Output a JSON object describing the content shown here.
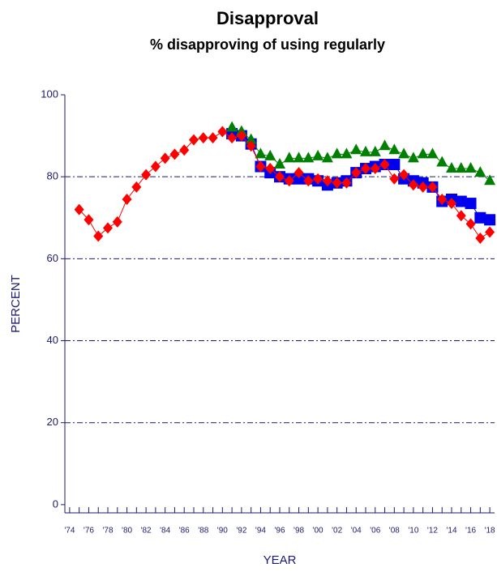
{
  "chart_data": {
    "type": "line",
    "title": "Disapproval",
    "subtitle": "% disapproving of using regularly",
    "xlabel": "YEAR",
    "ylabel": "PERCENT",
    "grid": true,
    "xlim": [
      1973.5,
      2018.5
    ],
    "ylim": [
      -2,
      100
    ],
    "yticks": [
      0,
      20,
      40,
      60,
      80,
      100
    ],
    "xticks": [
      {
        "value": 1974,
        "label": "'74"
      },
      {
        "value": 1976,
        "label": "'76"
      },
      {
        "value": 1978,
        "label": "'78"
      },
      {
        "value": 1980,
        "label": "'80"
      },
      {
        "value": 1982,
        "label": "'82"
      },
      {
        "value": 1984,
        "label": "'84"
      },
      {
        "value": 1986,
        "label": "'86"
      },
      {
        "value": 1988,
        "label": "'88"
      },
      {
        "value": 1990,
        "label": "'90"
      },
      {
        "value": 1992,
        "label": "'92"
      },
      {
        "value": 1994,
        "label": "'94"
      },
      {
        "value": 1996,
        "label": "'96"
      },
      {
        "value": 1998,
        "label": "'98"
      },
      {
        "value": 2000,
        "label": "'00"
      },
      {
        "value": 2002,
        "label": "'02"
      },
      {
        "value": 2004,
        "label": "'04"
      },
      {
        "value": 2006,
        "label": "'06"
      },
      {
        "value": 2008,
        "label": "'08"
      },
      {
        "value": 2010,
        "label": "'10"
      },
      {
        "value": 2012,
        "label": "'12"
      },
      {
        "value": 2014,
        "label": "'14"
      },
      {
        "value": 2016,
        "label": "'16"
      },
      {
        "value": 2018,
        "label": "'18"
      }
    ],
    "xminorticks": [
      1975,
      1977,
      1979,
      1981,
      1983,
      1985,
      1987,
      1989,
      1991,
      1993,
      1995,
      1997,
      1999,
      2001,
      2003,
      2005,
      2007,
      2009,
      2011,
      2013,
      2015,
      2017
    ],
    "series": [
      {
        "color": "#0000ee",
        "marker": "square",
        "x": [
          1991,
          1992,
          1993,
          1994,
          1995,
          1996,
          1997,
          1998,
          1999,
          2000,
          2001,
          2002,
          2003,
          2004,
          2005,
          2006,
          2007,
          2008,
          2009,
          2010,
          2011,
          2012,
          2013,
          2014,
          2015,
          2016,
          2017,
          2018
        ],
        "values": [
          90.5,
          90,
          88,
          82.5,
          81,
          80,
          79.5,
          79.5,
          79.5,
          79,
          78,
          78.5,
          79,
          81,
          82,
          82.5,
          83,
          83,
          79.5,
          79,
          78.5,
          77.5,
          74,
          74.5,
          74,
          73.5,
          70,
          69.5
        ]
      },
      {
        "color": "#008000",
        "marker": "triangle",
        "x": [
          1991,
          1992,
          1993,
          1994,
          1995,
          1996,
          1997,
          1998,
          1999,
          2000,
          2001,
          2002,
          2003,
          2004,
          2005,
          2006,
          2007,
          2008,
          2009,
          2010,
          2011,
          2012,
          2013,
          2014,
          2015,
          2016,
          2017,
          2018
        ],
        "values": [
          92,
          91,
          89,
          85.5,
          85,
          83,
          84.5,
          84.5,
          84.5,
          85,
          84.5,
          85.5,
          85.5,
          86.5,
          86,
          86,
          87.5,
          86.5,
          85.5,
          84.5,
          85.5,
          85.5,
          83.5,
          82,
          82,
          82,
          81,
          79
        ]
      },
      {
        "color": "#ff0000",
        "marker": "diamond",
        "x": [
          1975,
          1976,
          1977,
          1978,
          1979,
          1980,
          1981,
          1982,
          1983,
          1984,
          1985,
          1986,
          1987,
          1988,
          1989,
          1990,
          1991,
          1992,
          1993,
          1994,
          1995,
          1996,
          1997,
          1998,
          1999,
          2000,
          2001,
          2002,
          2003,
          2004,
          2005,
          2006,
          2007,
          2008,
          2009,
          2010,
          2011,
          2012,
          2013,
          2014,
          2015,
          2016,
          2017,
          2018
        ],
        "values": [
          72,
          69.5,
          65.5,
          67.5,
          69,
          74.5,
          77.5,
          80.5,
          82.5,
          84.5,
          85.5,
          86.5,
          89,
          89.5,
          89.5,
          91,
          89.5,
          90,
          87.5,
          82.5,
          82,
          80,
          79,
          81,
          79,
          79.5,
          79,
          78.5,
          78.5,
          81,
          82,
          82,
          83,
          79.5,
          80.5,
          78,
          77.5,
          77.5,
          74.5,
          73.5,
          70.5,
          68.5,
          65,
          66.5
        ]
      }
    ]
  }
}
